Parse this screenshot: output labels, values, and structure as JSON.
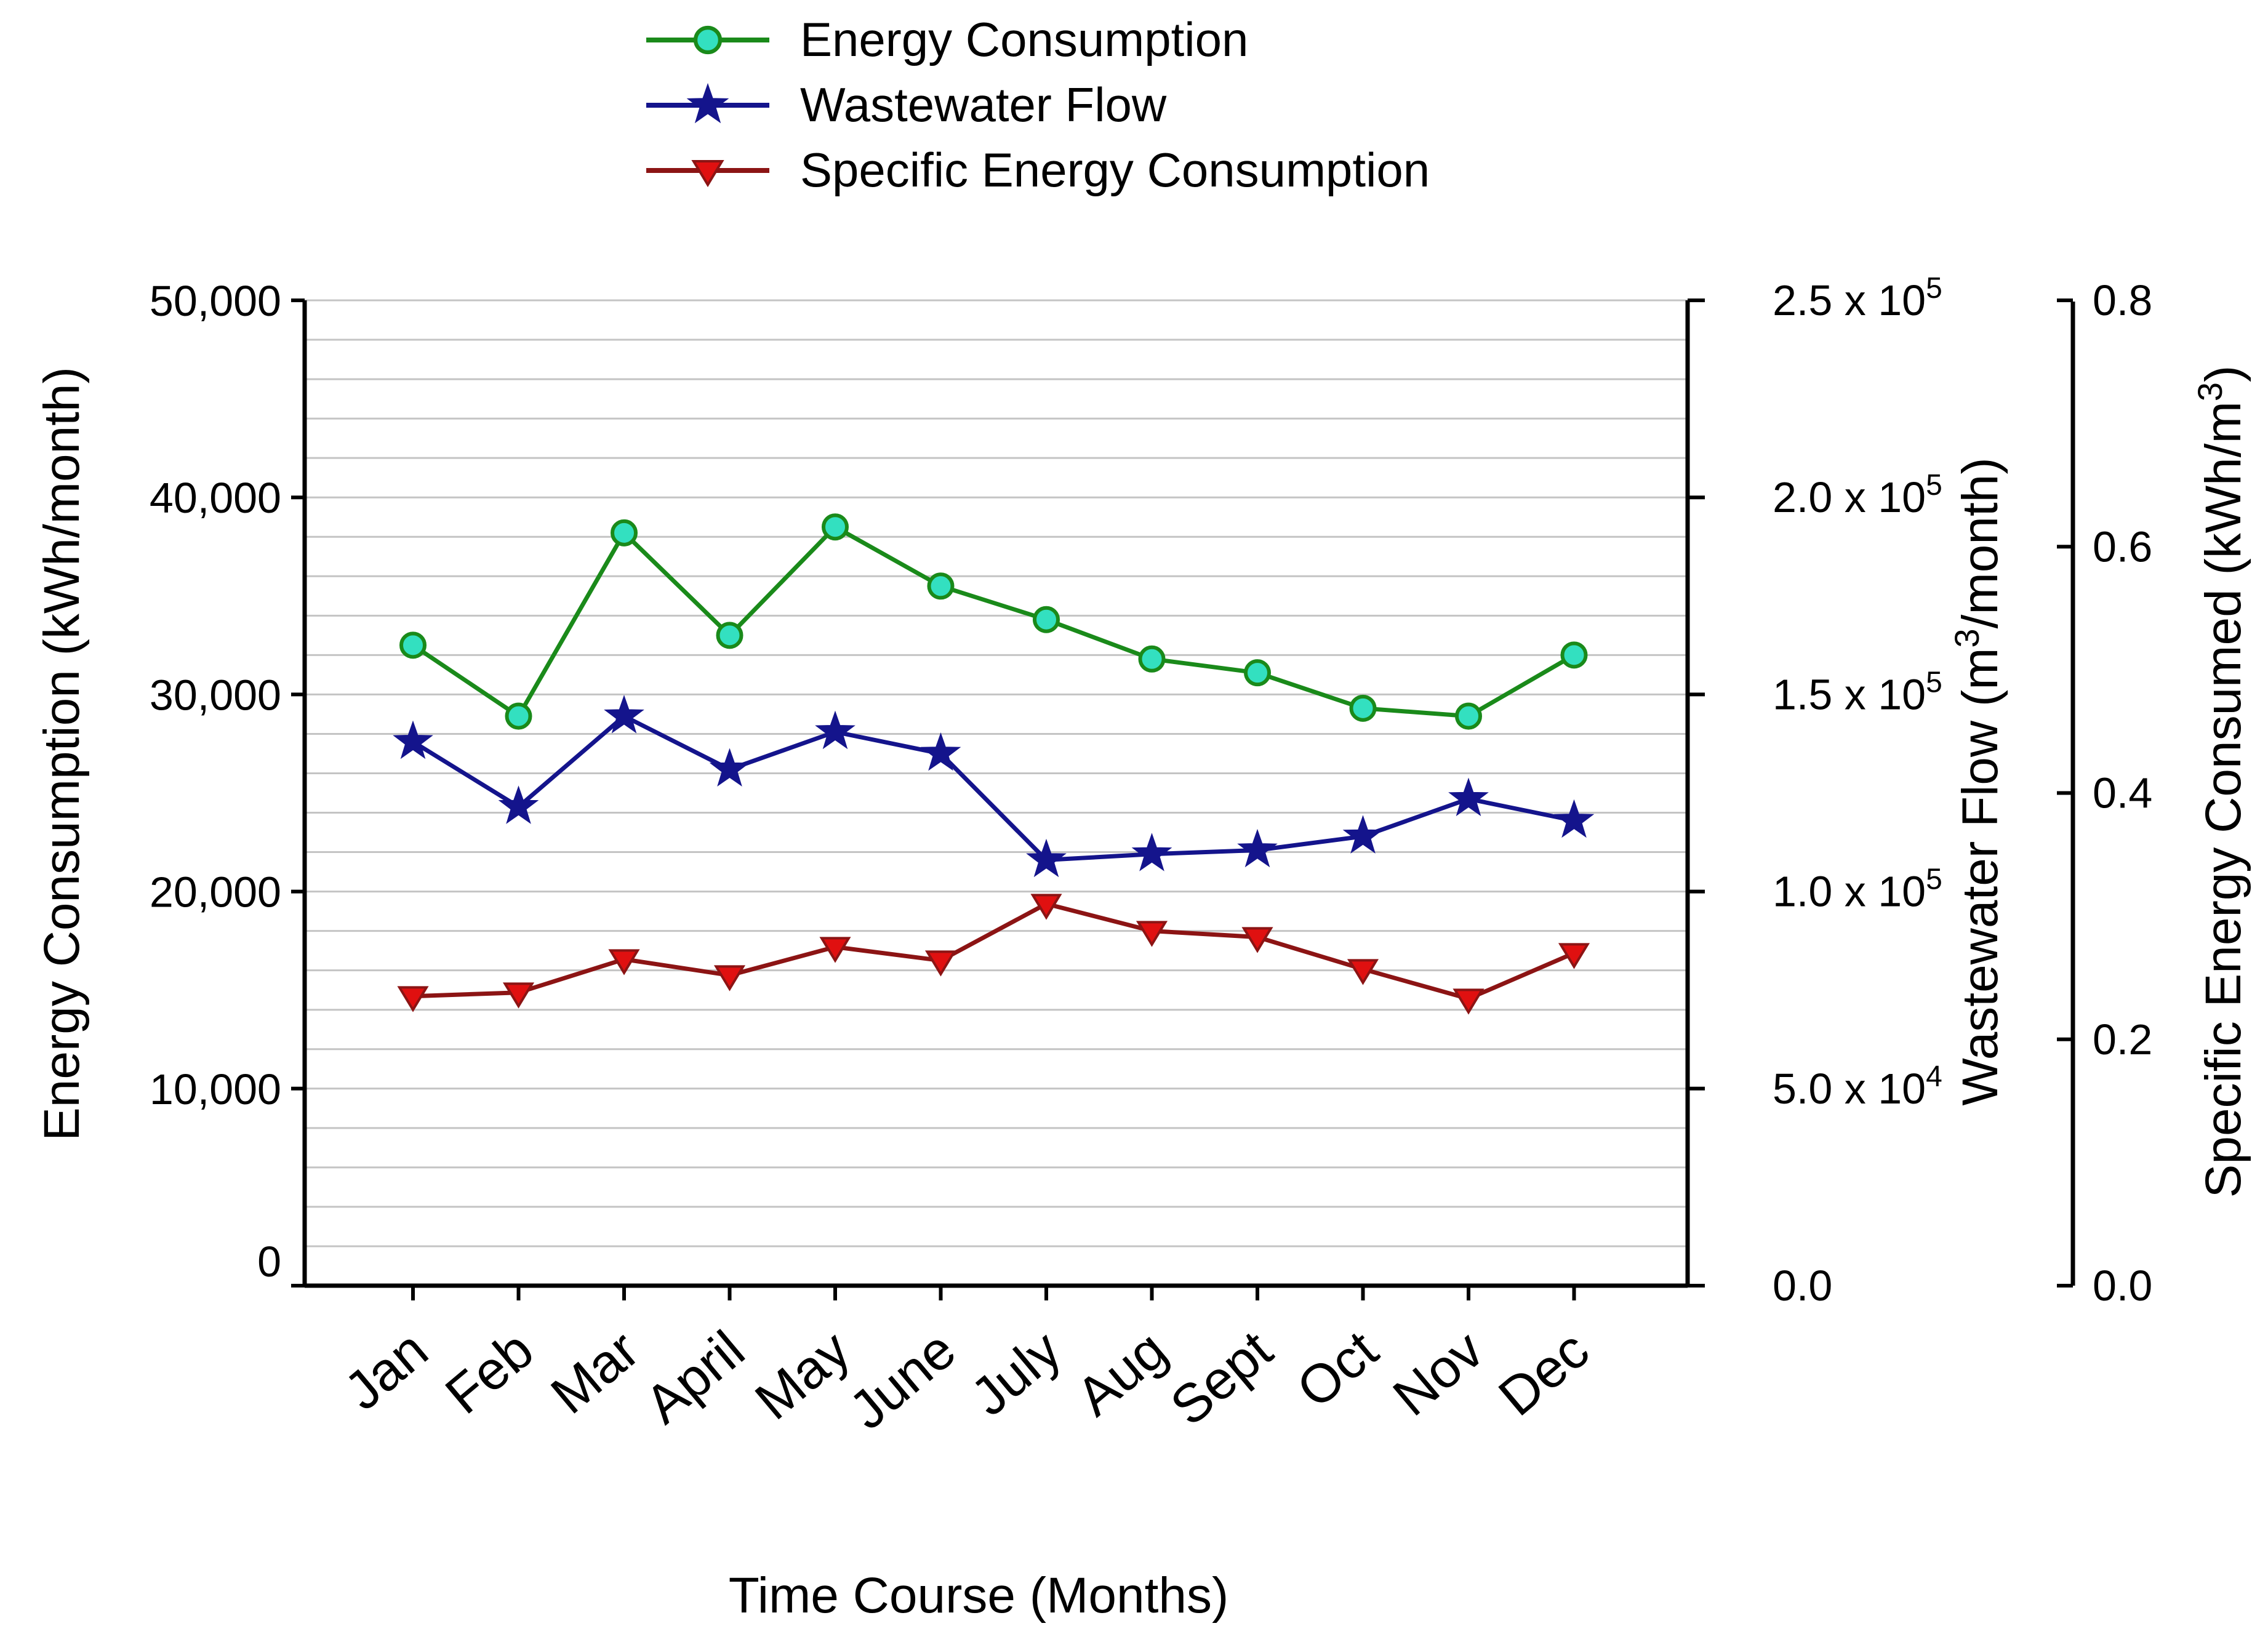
{
  "chart_data": {
    "type": "line",
    "title": "",
    "categories": [
      "Jan",
      "Feb",
      "Mar",
      "April",
      "May",
      "June",
      "July",
      "Aug",
      "Sept",
      "Oct",
      "Nov",
      "Dec"
    ],
    "xlabel": "Time Course (Months)",
    "axes": {
      "left": {
        "label": "Energy Consumption (kWh/month)",
        "range": [
          0,
          50000
        ],
        "ticks": [
          0,
          10000,
          20000,
          30000,
          40000,
          50000
        ],
        "tick_labels": [
          "0",
          "10,000",
          "20,000",
          "30,000",
          "40,000",
          "50,000"
        ]
      },
      "right1": {
        "label_parts": [
          "Wastewater Flow (m",
          "3",
          "/month)"
        ],
        "range": [
          0,
          250000
        ],
        "ticks": [
          0,
          50000,
          100000,
          150000,
          200000,
          250000
        ],
        "tick_labels": [
          {
            "mantissa": "0.0",
            "exponent": ""
          },
          {
            "mantissa": "5.0 x 10",
            "exponent": "4"
          },
          {
            "mantissa": "1.0 x 10",
            "exponent": "5"
          },
          {
            "mantissa": "1.5 x 10",
            "exponent": "5"
          },
          {
            "mantissa": "2.0 x 10",
            "exponent": "5"
          },
          {
            "mantissa": "2.5 x 10",
            "exponent": "5"
          }
        ]
      },
      "right2": {
        "label_parts": [
          "Specific Energy Consumed  (kWh/m",
          "3",
          ")"
        ],
        "range": [
          0,
          0.8
        ],
        "ticks": [
          0,
          0.2,
          0.4,
          0.6,
          0.8
        ],
        "tick_labels": [
          "0.0",
          "0.2",
          "0.4",
          "0.6",
          "0.8"
        ]
      }
    },
    "grid": true,
    "legend_position": "top-center",
    "series": [
      {
        "name": "Energy Consumption",
        "axis": "left",
        "marker": "circle",
        "color": "#1a8a1a",
        "marker_fill": "#33e0c0",
        "values": [
          32500,
          28900,
          38200,
          33000,
          38500,
          35500,
          33800,
          31800,
          31100,
          29300,
          28900,
          32000
        ]
      },
      {
        "name": "Wastewater Flow",
        "axis": "right1",
        "marker": "star",
        "color": "#14148c",
        "marker_fill": "#14148c",
        "values": [
          138000,
          121500,
          144500,
          131000,
          140500,
          135000,
          108000,
          109500,
          110500,
          114000,
          123500,
          118000
        ]
      },
      {
        "name": "Specific Energy Consumption",
        "axis": "right2",
        "marker": "triangle-down",
        "color": "#8c1414",
        "marker_fill": "#e01010",
        "values": [
          0.235,
          0.238,
          0.265,
          0.252,
          0.275,
          0.264,
          0.31,
          0.288,
          0.283,
          0.257,
          0.233,
          0.27
        ]
      }
    ]
  }
}
